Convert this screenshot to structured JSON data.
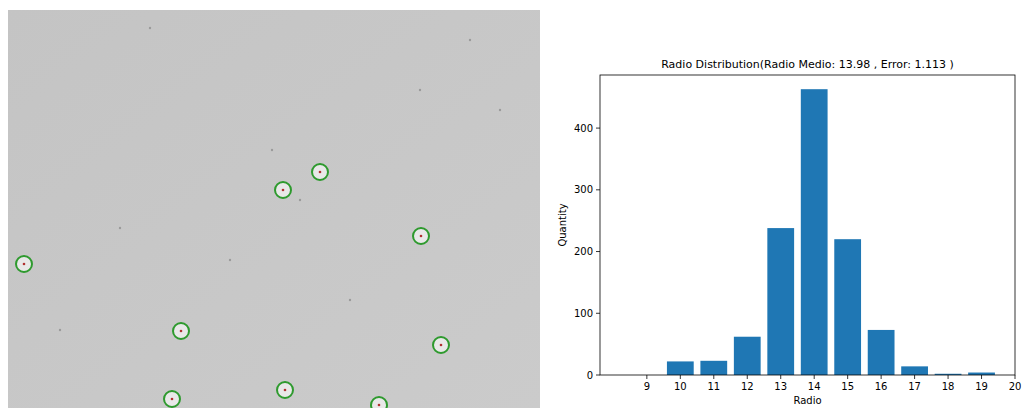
{
  "chart_data": {
    "type": "bar",
    "title": "Radio Distribution(Radio Medio: 13.98 , Error: 1.113 )",
    "x_label": "Radio",
    "y_label": "Quantity",
    "x": [
      9,
      10,
      11,
      12,
      13,
      14,
      15,
      16,
      17,
      18,
      19
    ],
    "values": [
      0,
      22,
      23,
      62,
      238,
      463,
      220,
      73,
      14,
      2,
      4
    ],
    "color": "#1f77b4",
    "xlim": [
      7.6,
      20
    ],
    "xticks": [
      9,
      10,
      11,
      12,
      13,
      14,
      15,
      16,
      17,
      18,
      19,
      20
    ],
    "ylim": [
      0,
      486
    ],
    "yticks": [
      0,
      100,
      200,
      300,
      400
    ],
    "grid": false
  }
}
